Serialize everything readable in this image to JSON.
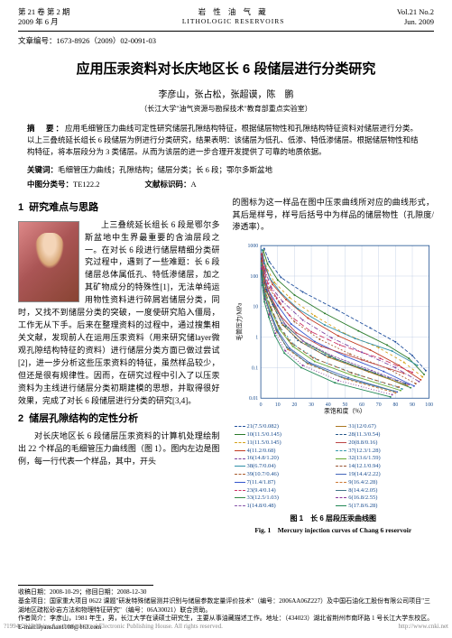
{
  "header": {
    "vol_cn": "第 21 卷 第 2 期",
    "date_cn": "2009 年 6 月",
    "journal_cn": "岩 性 油 气 藏",
    "journal_en": "LITHOLOGIC RESERVOIRS",
    "vol_en": "Vol.21 No.2",
    "date_en": "Jun. 2009"
  },
  "article_no_label": "文章编号：",
  "article_no": "1673-8926（2009）02-0091-03",
  "title": "应用压汞资料对长庆地区长 6 段储层进行分类研究",
  "authors": "李彦山，张占松，张超谟，陈　鹏",
  "affiliation": "（长江大学\"油气资源与勘探技术\"教育部重点实验室）",
  "abstract": {
    "label": "摘　要：",
    "text": "应用毛细管压力曲线可定性研究储层孔隙结构特征，根据储层物性和孔隙结构特征资料对储层进行分类。以上三叠统延长组长 6 段储层为例进行分类研究，结果表明：该储层为低孔、低渗、特低渗储层。根据储层物性和结构特征，将本层段分为 3 类储层。从而为该层的进一步合理开发提供了可靠的地质依据。"
  },
  "keywords": {
    "label": "关键词：",
    "text": "毛细管压力曲线；孔隙结构；储层分类；长 6 段；鄂尔多斯盆地"
  },
  "class": {
    "clc_label": "中图分类号：",
    "clc": "TE122.2",
    "doc_label": "文献标识码：",
    "doc": "A"
  },
  "section1": {
    "num": "1",
    "title": "研究难点与思路",
    "p1": "上三叠统延长组长 6 段是鄂尔多斯盆地中生界最重要的含油层段之一。在对长 6 段进行储层精细分类研究过程中，遇到了一些难题：长 6 段储层总体属低孔、特低渗储层，加之其矿物成分的特殊性[1]，无法单纯运用物性资料进行碎屑岩储层分类，同时，又找不到储层分类的突破，一度使研究陷入僵局，工作无从下手。后来在整理资料的过程中，通过搜集相关文献，发现前人在运用压汞资料（用来研究储layer微观孔隙结构特征的资料）进行储层分类方面已做过尝试[2]，进一步分析这些压汞资料的特征，虽然样品较少，但还是很有规律性。因而，在研究过程中引入了以压汞资料为主线进行储层分类初期建模的思想，并取得很好效果，完成了对长 6 段储层进行分类的研究[3,4]。"
  },
  "section2": {
    "num": "2",
    "title": "储层孔隙结构的定性分析",
    "p1": "对长庆地区长 6 段储层压汞资料的计算机处理绘制出 22 个样品的毛细管压力曲线图（图 1）。图内左边是图例，每一行代表一个样品，其中，开头"
  },
  "col2": {
    "p1": "的图标为这一样品在图中压汞曲线所对应的曲线形式，其后是样号，样号后括号中为样品的储层物性（孔隙度/渗透率）。"
  },
  "chart": {
    "type": "line",
    "xlabel": "汞饱和度（%）",
    "ylabel": "毛管压力/MPa",
    "xlim": [
      0,
      100
    ],
    "ylim": [
      0.01,
      1000
    ],
    "yscale": "log",
    "xticks": [
      0,
      10,
      20,
      30,
      40,
      50,
      60,
      70,
      80,
      90,
      100
    ],
    "yticks": [
      0.01,
      0.1,
      1,
      10,
      100,
      1000
    ],
    "background_color": "#ffffff",
    "grid_color": "#b8c8e0",
    "axis_color": "#1a4d8f",
    "caption_cn": "图 1　长 6 层段压汞曲线图",
    "caption_en": "Fig. 1　Mercury injection curves of Chang 6 reservoir",
    "series": [
      {
        "label": "21(7.5/0.082)",
        "color": "#1f4e9c",
        "dash": "4 2",
        "x": [
          98,
          90,
          80,
          65,
          45,
          25,
          12,
          5,
          2
        ],
        "y": [
          0.08,
          0.25,
          0.7,
          2,
          8,
          30,
          90,
          300,
          800
        ]
      },
      {
        "label": "10(11.5/0.145)",
        "color": "#2a7a2a",
        "dash": "",
        "x": [
          97,
          88,
          75,
          58,
          38,
          20,
          10,
          4,
          1.5
        ],
        "y": [
          0.06,
          0.2,
          0.55,
          1.6,
          6,
          24,
          75,
          250,
          700
        ]
      },
      {
        "label": "11(11.5/0.145)",
        "color": "#d4a017",
        "dash": "3 3",
        "x": [
          96,
          85,
          70,
          50,
          32,
          17,
          8,
          3,
          1.2
        ],
        "y": [
          0.05,
          0.15,
          0.45,
          1.3,
          5,
          20,
          63,
          210,
          600
        ]
      },
      {
        "label": "4(11.2/0.68)",
        "color": "#c23b22",
        "dash": "",
        "x": [
          95,
          82,
          65,
          46,
          28,
          15,
          7,
          2.8,
          1
        ],
        "y": [
          0.04,
          0.12,
          0.38,
          1.1,
          4.2,
          17,
          53,
          180,
          520
        ]
      },
      {
        "label": "16(14.8/1.20)",
        "color": "#7b3f9d",
        "dash": "5 2 1 2",
        "x": [
          94,
          80,
          60,
          42,
          25,
          13,
          6,
          2.5,
          0.9
        ],
        "y": [
          0.035,
          0.1,
          0.32,
          0.95,
          3.6,
          14.5,
          45,
          155,
          450
        ]
      },
      {
        "label": "38(6.7/0.04)",
        "color": "#2f8fa8",
        "dash": "",
        "x": [
          93,
          78,
          56,
          38,
          22,
          12,
          5.5,
          2.2,
          0.8
        ],
        "y": [
          0.12,
          0.35,
          0.9,
          2.5,
          8.5,
          28,
          82,
          260,
          720
        ]
      },
      {
        "label": "39(10.7/0.46)",
        "color": "#a85c2f",
        "dash": "2 2",
        "x": [
          92,
          76,
          53,
          35,
          20,
          11,
          5,
          2,
          0.75
        ],
        "y": [
          0.03,
          0.09,
          0.28,
          0.85,
          3.2,
          13,
          40,
          140,
          400
        ]
      },
      {
        "label": "7(11.4/1.87)",
        "color": "#3355cc",
        "dash": "",
        "x": [
          91,
          73,
          50,
          32,
          18,
          10,
          4.5,
          1.8,
          0.7
        ],
        "y": [
          0.025,
          0.075,
          0.24,
          0.72,
          2.7,
          11,
          34,
          120,
          350
        ]
      },
      {
        "label": "23(9.4/0.14)",
        "color": "#cc3366",
        "dash": "6 3",
        "x": [
          90,
          71,
          47,
          30,
          17,
          9.5,
          4.2,
          1.7,
          0.65
        ],
        "y": [
          0.07,
          0.2,
          0.55,
          1.5,
          5.2,
          19,
          58,
          190,
          540
        ]
      },
      {
        "label": "33(12.5/1.03)",
        "color": "#338844",
        "dash": "",
        "x": [
          89,
          68,
          44,
          27,
          15,
          8.5,
          3.8,
          1.5,
          0.6
        ],
        "y": [
          0.022,
          0.065,
          0.2,
          0.62,
          2.3,
          9.4,
          29,
          103,
          300
        ]
      },
      {
        "label": "1(14.8/0.48)",
        "color": "#8855aa",
        "dash": "3 1",
        "x": [
          88,
          66,
          42,
          25,
          14,
          8,
          3.5,
          1.4,
          0.55
        ],
        "y": [
          0.028,
          0.08,
          0.25,
          0.75,
          2.8,
          11.5,
          36,
          125,
          360
        ]
      },
      {
        "label": "31(12/0.67)",
        "color": "#aa7722",
        "dash": "",
        "x": [
          87,
          64,
          40,
          24,
          13,
          7.5,
          3.3,
          1.3,
          0.52
        ],
        "y": [
          0.026,
          0.073,
          0.22,
          0.68,
          2.5,
          10.2,
          32,
          112,
          325
        ]
      },
      {
        "label": "28(11.3/0.54)",
        "color": "#225588",
        "dash": "4 2 1 2",
        "x": [
          86,
          62,
          38,
          22,
          12.5,
          7,
          3.1,
          1.25,
          0.5
        ],
        "y": [
          0.03,
          0.085,
          0.26,
          0.78,
          2.9,
          11.8,
          37,
          128,
          370
        ]
      },
      {
        "label": "20(8.8/0.16)",
        "color": "#bb4444",
        "dash": "",
        "x": [
          85,
          60,
          36,
          21,
          12,
          6.7,
          3,
          1.2,
          0.48
        ],
        "y": [
          0.065,
          0.18,
          0.5,
          1.4,
          4.8,
          17.5,
          54,
          178,
          510
        ]
      },
      {
        "label": "37(12.3/1.28)",
        "color": "#3399aa",
        "dash": "2 3",
        "x": [
          84,
          58,
          34,
          20,
          11.5,
          6.4,
          2.9,
          1.15,
          0.46
        ],
        "y": [
          0.02,
          0.058,
          0.18,
          0.55,
          2.05,
          8.3,
          26,
          92,
          270
        ]
      },
      {
        "label": "32(13.6/1.59)",
        "color": "#66aa33",
        "dash": "",
        "x": [
          83,
          56,
          32,
          19,
          11,
          6.1,
          2.75,
          1.1,
          0.44
        ],
        "y": [
          0.018,
          0.052,
          0.16,
          0.5,
          1.85,
          7.5,
          23.5,
          83,
          245
        ]
      },
      {
        "label": "14(12.1/0.94)",
        "color": "#995533",
        "dash": "5 3",
        "x": [
          82,
          54,
          31,
          18,
          10.5,
          5.9,
          2.65,
          1.05,
          0.42
        ],
        "y": [
          0.023,
          0.067,
          0.21,
          0.64,
          2.4,
          9.8,
          30.5,
          107,
          310
        ]
      },
      {
        "label": "19(14.4/2.22)",
        "color": "#4466bb",
        "dash": "",
        "x": [
          81,
          52,
          29,
          17,
          10,
          5.6,
          2.5,
          1,
          0.4
        ],
        "y": [
          0.016,
          0.047,
          0.145,
          0.44,
          1.65,
          6.7,
          21,
          74,
          218
        ]
      },
      {
        "label": "9(16.4/2.28)",
        "color": "#cc7733",
        "dash": "3 2",
        "x": [
          80,
          50,
          28,
          16,
          9.5,
          5.3,
          2.4,
          0.95,
          0.38
        ],
        "y": [
          0.015,
          0.043,
          0.133,
          0.4,
          1.5,
          6.1,
          19.2,
          68,
          200
        ]
      },
      {
        "label": "8(14.4/2.05)",
        "color": "#447788",
        "dash": "",
        "x": [
          79,
          48,
          27,
          15.5,
          9.2,
          5.1,
          2.3,
          0.92,
          0.37
        ],
        "y": [
          0.017,
          0.049,
          0.15,
          0.46,
          1.72,
          7,
          22,
          77.5,
          228
        ]
      },
      {
        "label": "6(16.8/2.55)",
        "color": "#883399",
        "dash": "1 2",
        "x": [
          78,
          46,
          25,
          14.5,
          8.7,
          4.9,
          2.2,
          0.88,
          0.35
        ],
        "y": [
          0.013,
          0.038,
          0.118,
          0.36,
          1.35,
          5.5,
          17.3,
          61,
          180
        ]
      },
      {
        "label": "5(17.8/6.28)",
        "color": "#228855",
        "dash": "",
        "x": [
          77,
          44,
          24,
          14,
          8.4,
          4.7,
          2.1,
          0.85,
          0.34
        ],
        "y": [
          0.011,
          0.032,
          0.1,
          0.3,
          1.12,
          4.55,
          14.3,
          50.5,
          150
        ]
      }
    ]
  },
  "footer": {
    "dates": "收稿日期：2008-10-29；修回日期：2008-12-30",
    "fund": "基金项目：国家重大项目 0622 课题\"研发特殊储层测井识别与储层参数定量评价技术\"（编号：2006AA06Z227）及中国石油化工股份有限公司项目\"三湖地区疏松砂岩方法和物理特征研究\"（编号：06A30021）联合资助。",
    "author": "作者简介：李彦山，1981 年生，男，长江大学在读硕士研究生，主要从事油藏描述工作。地址：（434023）湖北省荆州市南环路 1 号长江大学东校区。E-mail:liyanshan1108@163.com"
  },
  "watermark": {
    "left": "?1994-2015 China Academic Journal Electronic Publishing House. All rights reserved.",
    "right": "http://www.cnki.net"
  }
}
